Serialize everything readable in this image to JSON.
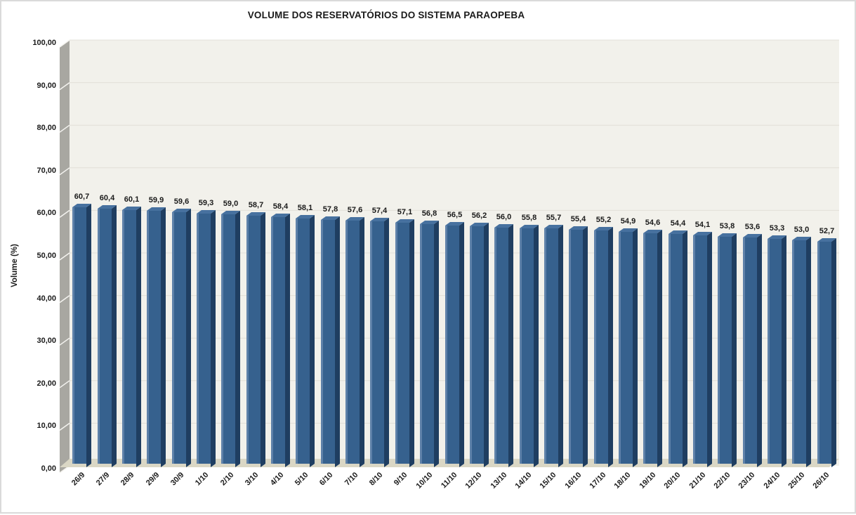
{
  "title": "VOLUME DOS RESERVATÓRIOS DO SISTEMA PARAOPEBA",
  "chart_data": {
    "type": "bar",
    "style": "excel-3d-column",
    "title": "VOLUME DOS RESERVATÓRIOS DO SISTEMA PARAOPEBA",
    "xlabel": "",
    "ylabel": "Volume (%)",
    "ylim": [
      0,
      100
    ],
    "ytick_step": 10,
    "ytick_labels": [
      "100,00",
      "90,00",
      "80,00",
      "70,00",
      "60,00",
      "50,00",
      "40,00",
      "30,00",
      "20,00",
      "10,00",
      "0,00"
    ],
    "grid": true,
    "legend": false,
    "categories": [
      "26/9",
      "27/9",
      "28/9",
      "29/9",
      "30/9",
      "1/10",
      "2/10",
      "3/10",
      "4/10",
      "5/10",
      "6/10",
      "7/10",
      "8/10",
      "9/10",
      "10/10",
      "11/10",
      "12/10",
      "13/10",
      "14/10",
      "15/10",
      "16/10",
      "17/10",
      "18/10",
      "19/10",
      "20/10",
      "21/10",
      "22/10",
      "23/10",
      "24/10",
      "25/10",
      "26/10"
    ],
    "values": [
      60.7,
      60.4,
      60.1,
      59.9,
      59.6,
      59.3,
      59.0,
      58.7,
      58.4,
      58.1,
      57.8,
      57.6,
      57.4,
      57.1,
      56.8,
      56.5,
      56.2,
      56.0,
      55.8,
      55.7,
      55.4,
      55.2,
      54.9,
      54.6,
      54.4,
      54.1,
      53.8,
      53.6,
      53.3,
      53.0,
      52.7
    ],
    "data_labels": [
      "60,7",
      "60,4",
      "60,1",
      "59,9",
      "59,6",
      "59,3",
      "59,0",
      "58,7",
      "58,4",
      "58,1",
      "57,8",
      "57,6",
      "57,4",
      "57,1",
      "56,8",
      "56,5",
      "56,2",
      "56,0",
      "55,8",
      "55,7",
      "55,4",
      "55,2",
      "54,9",
      "54,6",
      "54,4",
      "54,1",
      "53,8",
      "53,6",
      "53,3",
      "53,0",
      "52,7"
    ],
    "colors": {
      "bar_front": "#36618E",
      "bar_highlight": "#5E81A9",
      "bar_side": "#1F3E61",
      "bar_top": "#47719F",
      "plot_bg": "#F2F1EB",
      "wall": "#A8A7A1",
      "wall_tick": "#F5F4F0",
      "floor": "#DAD7C5",
      "gridline": "#E2E0D8",
      "text": "#1A1A1A"
    }
  }
}
